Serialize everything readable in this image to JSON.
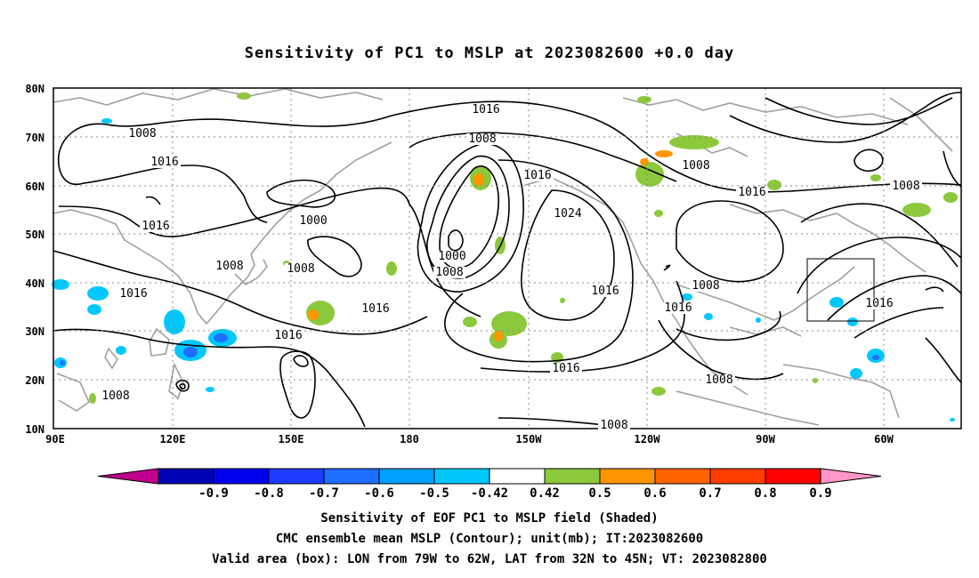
{
  "title": "Sensitivity of PC1 to MSLP at 2023082600 +0.0 day",
  "lat_labels": [
    "80N",
    "70N",
    "60N",
    "50N",
    "40N",
    "30N",
    "20N",
    "10N"
  ],
  "lon_labels": [
    "90E",
    "120E",
    "150E",
    "180",
    "150W",
    "120W",
    "90W",
    "60W"
  ],
  "contour_labels": [
    "1016",
    "1008",
    "1016",
    "1008",
    "1016",
    "1000",
    "1008",
    "1016",
    "1016",
    "1008",
    "1016",
    "1024",
    "1000",
    "1008",
    "1016",
    "1016",
    "1016",
    "1008",
    "1008",
    "1016",
    "1008",
    "1016",
    "1016",
    "1008",
    "1008",
    "1008"
  ],
  "colorbar": {
    "ticks": [
      "-0.9",
      "-0.8",
      "-0.7",
      "-0.6",
      "-0.5",
      "-0.42",
      "0.42",
      "0.5",
      "0.6",
      "0.7",
      "0.8",
      "0.9"
    ],
    "colors": [
      "#c0008c",
      "#0000b4",
      "#0000f0",
      "#1e3cff",
      "#1e6eff",
      "#00a0ff",
      "#00c8ff",
      "#ffffff",
      "#8cc83c",
      "#ff9600",
      "#ff6400",
      "#ff3c00",
      "#ff0000",
      "#ff96c8"
    ]
  },
  "valid_box": {
    "lon_from": "79W",
    "lon_to": "62W",
    "lat_from": "32N",
    "lat_to": "45N"
  },
  "captions": [
    "Sensitivity of EOF PC1 to MSLP field (Shaded)",
    "CMC ensemble mean MSLP (Contour); unit(mb); IT:2023082600",
    "Valid area (box): LON from 79W to 62W, LAT from 32N to 45N; VT: 2023082800"
  ]
}
